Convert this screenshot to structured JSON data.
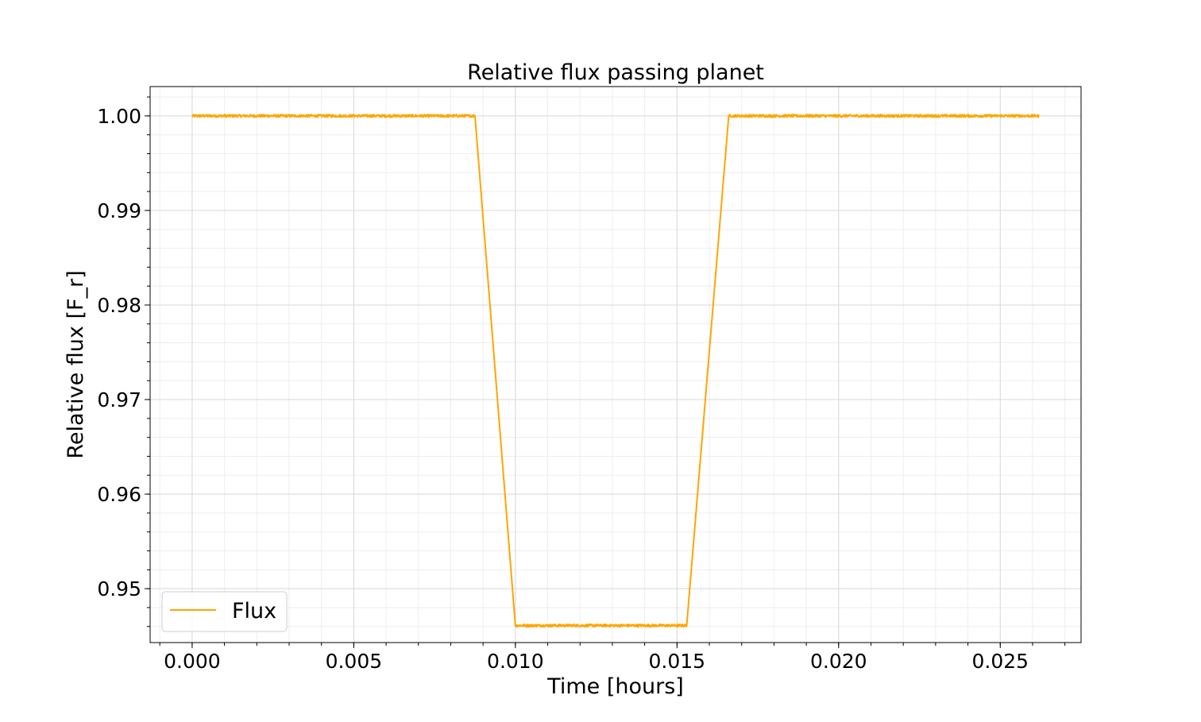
{
  "chart_data": {
    "type": "line",
    "title": "Relative flux passing planet",
    "xlabel": "Time [hours]",
    "ylabel": "Relative flux [F_r]",
    "xlim": [
      -0.0013,
      0.0275
    ],
    "ylim": [
      0.9443,
      1.0031
    ],
    "x_ticks": [
      0.0,
      0.005,
      0.01,
      0.015,
      0.02,
      0.025
    ],
    "x_tick_labels": [
      "0.000",
      "0.005",
      "0.010",
      "0.015",
      "0.020",
      "0.025"
    ],
    "y_ticks": [
      0.95,
      0.96,
      0.97,
      0.98,
      0.99,
      1.0
    ],
    "y_tick_labels": [
      "0.95",
      "0.96",
      "0.97",
      "0.98",
      "0.99",
      "1.00"
    ],
    "grid": true,
    "minor_grid": true,
    "legend_position": "lower-left",
    "series": [
      {
        "name": "Flux",
        "color": "#FFA500",
        "x": [
          0.0,
          0.00875,
          0.01,
          0.0153,
          0.0166,
          0.0262
        ],
        "y": [
          1.0,
          1.0,
          0.9461,
          0.9461,
          1.0,
          1.0
        ]
      }
    ]
  }
}
